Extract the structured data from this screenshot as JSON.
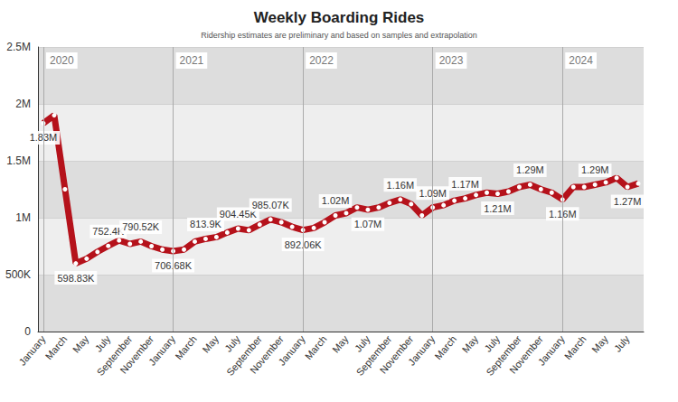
{
  "chart_data": {
    "type": "line",
    "title": "Weekly Boarding Rides",
    "subtitle": "Ridership estimates are preliminary and based on samples and extrapolation",
    "categories": [
      "January",
      null,
      "March",
      null,
      "May",
      null,
      "July",
      null,
      "September",
      null,
      "November",
      null,
      "January",
      null,
      "March",
      null,
      "May",
      null,
      "July",
      null,
      "September",
      null,
      "November",
      null,
      "January",
      null,
      "March",
      null,
      "May",
      null,
      "July",
      null,
      "September",
      null,
      "November",
      null,
      "January",
      null,
      "March",
      null,
      "May",
      null,
      "July",
      null,
      "September",
      null,
      "November",
      null,
      "January",
      null,
      "March",
      null,
      "May",
      null,
      "July",
      null
    ],
    "values": [
      1830000,
      1900000,
      1250000,
      598830,
      640000,
      700000,
      752400,
      800000,
      770000,
      790520,
      750000,
      720000,
      706680,
      720000,
      790000,
      813900,
      830000,
      870000,
      904450,
      890000,
      940000,
      985070,
      960000,
      920000,
      892060,
      910000,
      960000,
      1020000,
      1040000,
      1090000,
      1070000,
      1090000,
      1130000,
      1160000,
      1120000,
      1020000,
      1090000,
      1110000,
      1150000,
      1170000,
      1200000,
      1220000,
      1210000,
      1230000,
      1270000,
      1290000,
      1250000,
      1220000,
      1160000,
      1270000,
      1270000,
      1290000,
      1310000,
      1350000,
      1270000,
      1300000
    ],
    "value_labels": [
      "1.83M",
      null,
      null,
      "598.83K",
      null,
      null,
      "752.4K",
      null,
      null,
      "790.52K",
      null,
      null,
      "706.68K",
      null,
      null,
      "813.9K",
      null,
      null,
      "904.45K",
      null,
      null,
      "985.07K",
      null,
      null,
      "892.06K",
      null,
      null,
      "1.02M",
      null,
      null,
      "1.07M",
      null,
      null,
      "1.16M",
      null,
      null,
      "1.09M",
      null,
      null,
      "1.17M",
      null,
      null,
      "1.21M",
      null,
      null,
      "1.29M",
      null,
      null,
      "1.16M",
      null,
      null,
      "1.29M",
      null,
      null,
      "1.27M",
      null
    ],
    "annotations": [
      {
        "text": "2020",
        "index": 0
      },
      {
        "text": "2021",
        "index": 12
      },
      {
        "text": "2022",
        "index": 24
      },
      {
        "text": "2023",
        "index": 36
      },
      {
        "text": "2024",
        "index": 48
      }
    ],
    "color": "#b5121b",
    "marker": "circle",
    "line_style": "solid",
    "ylim": [
      0,
      2500000
    ],
    "yticks": [
      0,
      {
        "value": 500000,
        "label": "500K"
      },
      {
        "value": 1000000,
        "label": "1M"
      },
      {
        "value": 1500000,
        "label": "1.5M"
      },
      {
        "value": 2000000,
        "label": "2M"
      },
      {
        "value": 2500000,
        "label": "2.5M"
      }
    ],
    "grid": true,
    "data_labels": true
  }
}
